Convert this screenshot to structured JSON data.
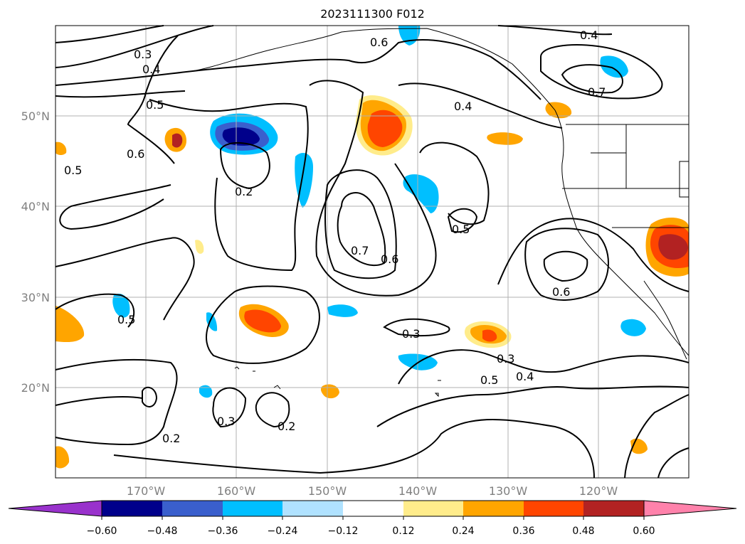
{
  "title": "2023111300 F012",
  "map": {
    "lat_labels": [
      "50°N",
      "40°N",
      "30°N",
      "20°N"
    ],
    "lon_labels": [
      "170°W",
      "160°W",
      "150°W",
      "140°W",
      "130°W",
      "120°W"
    ],
    "contour_labels": [
      "0.2",
      "0.2",
      "0.2",
      "0.3",
      "0.3",
      "0.3",
      "0.3",
      "0.4",
      "0.4",
      "0.4",
      "0.4",
      "0.5",
      "0.5",
      "0.5",
      "0.5",
      "0.5",
      "0.6",
      "0.6",
      "0.6",
      "0.6",
      "0.7",
      "0.7"
    ]
  },
  "colorbar": {
    "ticks": [
      "−0.60",
      "−0.48",
      "−0.36",
      "−0.24",
      "−0.12",
      "0.12",
      "0.24",
      "0.36",
      "0.48",
      "0.60"
    ],
    "colors": [
      "#9932cc",
      "#00008b",
      "#3a5fcd",
      "#00bfff",
      "#b0e2ff",
      "#ffffff",
      "#ffec8b",
      "#ffa500",
      "#ff4500",
      "#b22222",
      "#ff82ab"
    ]
  }
}
